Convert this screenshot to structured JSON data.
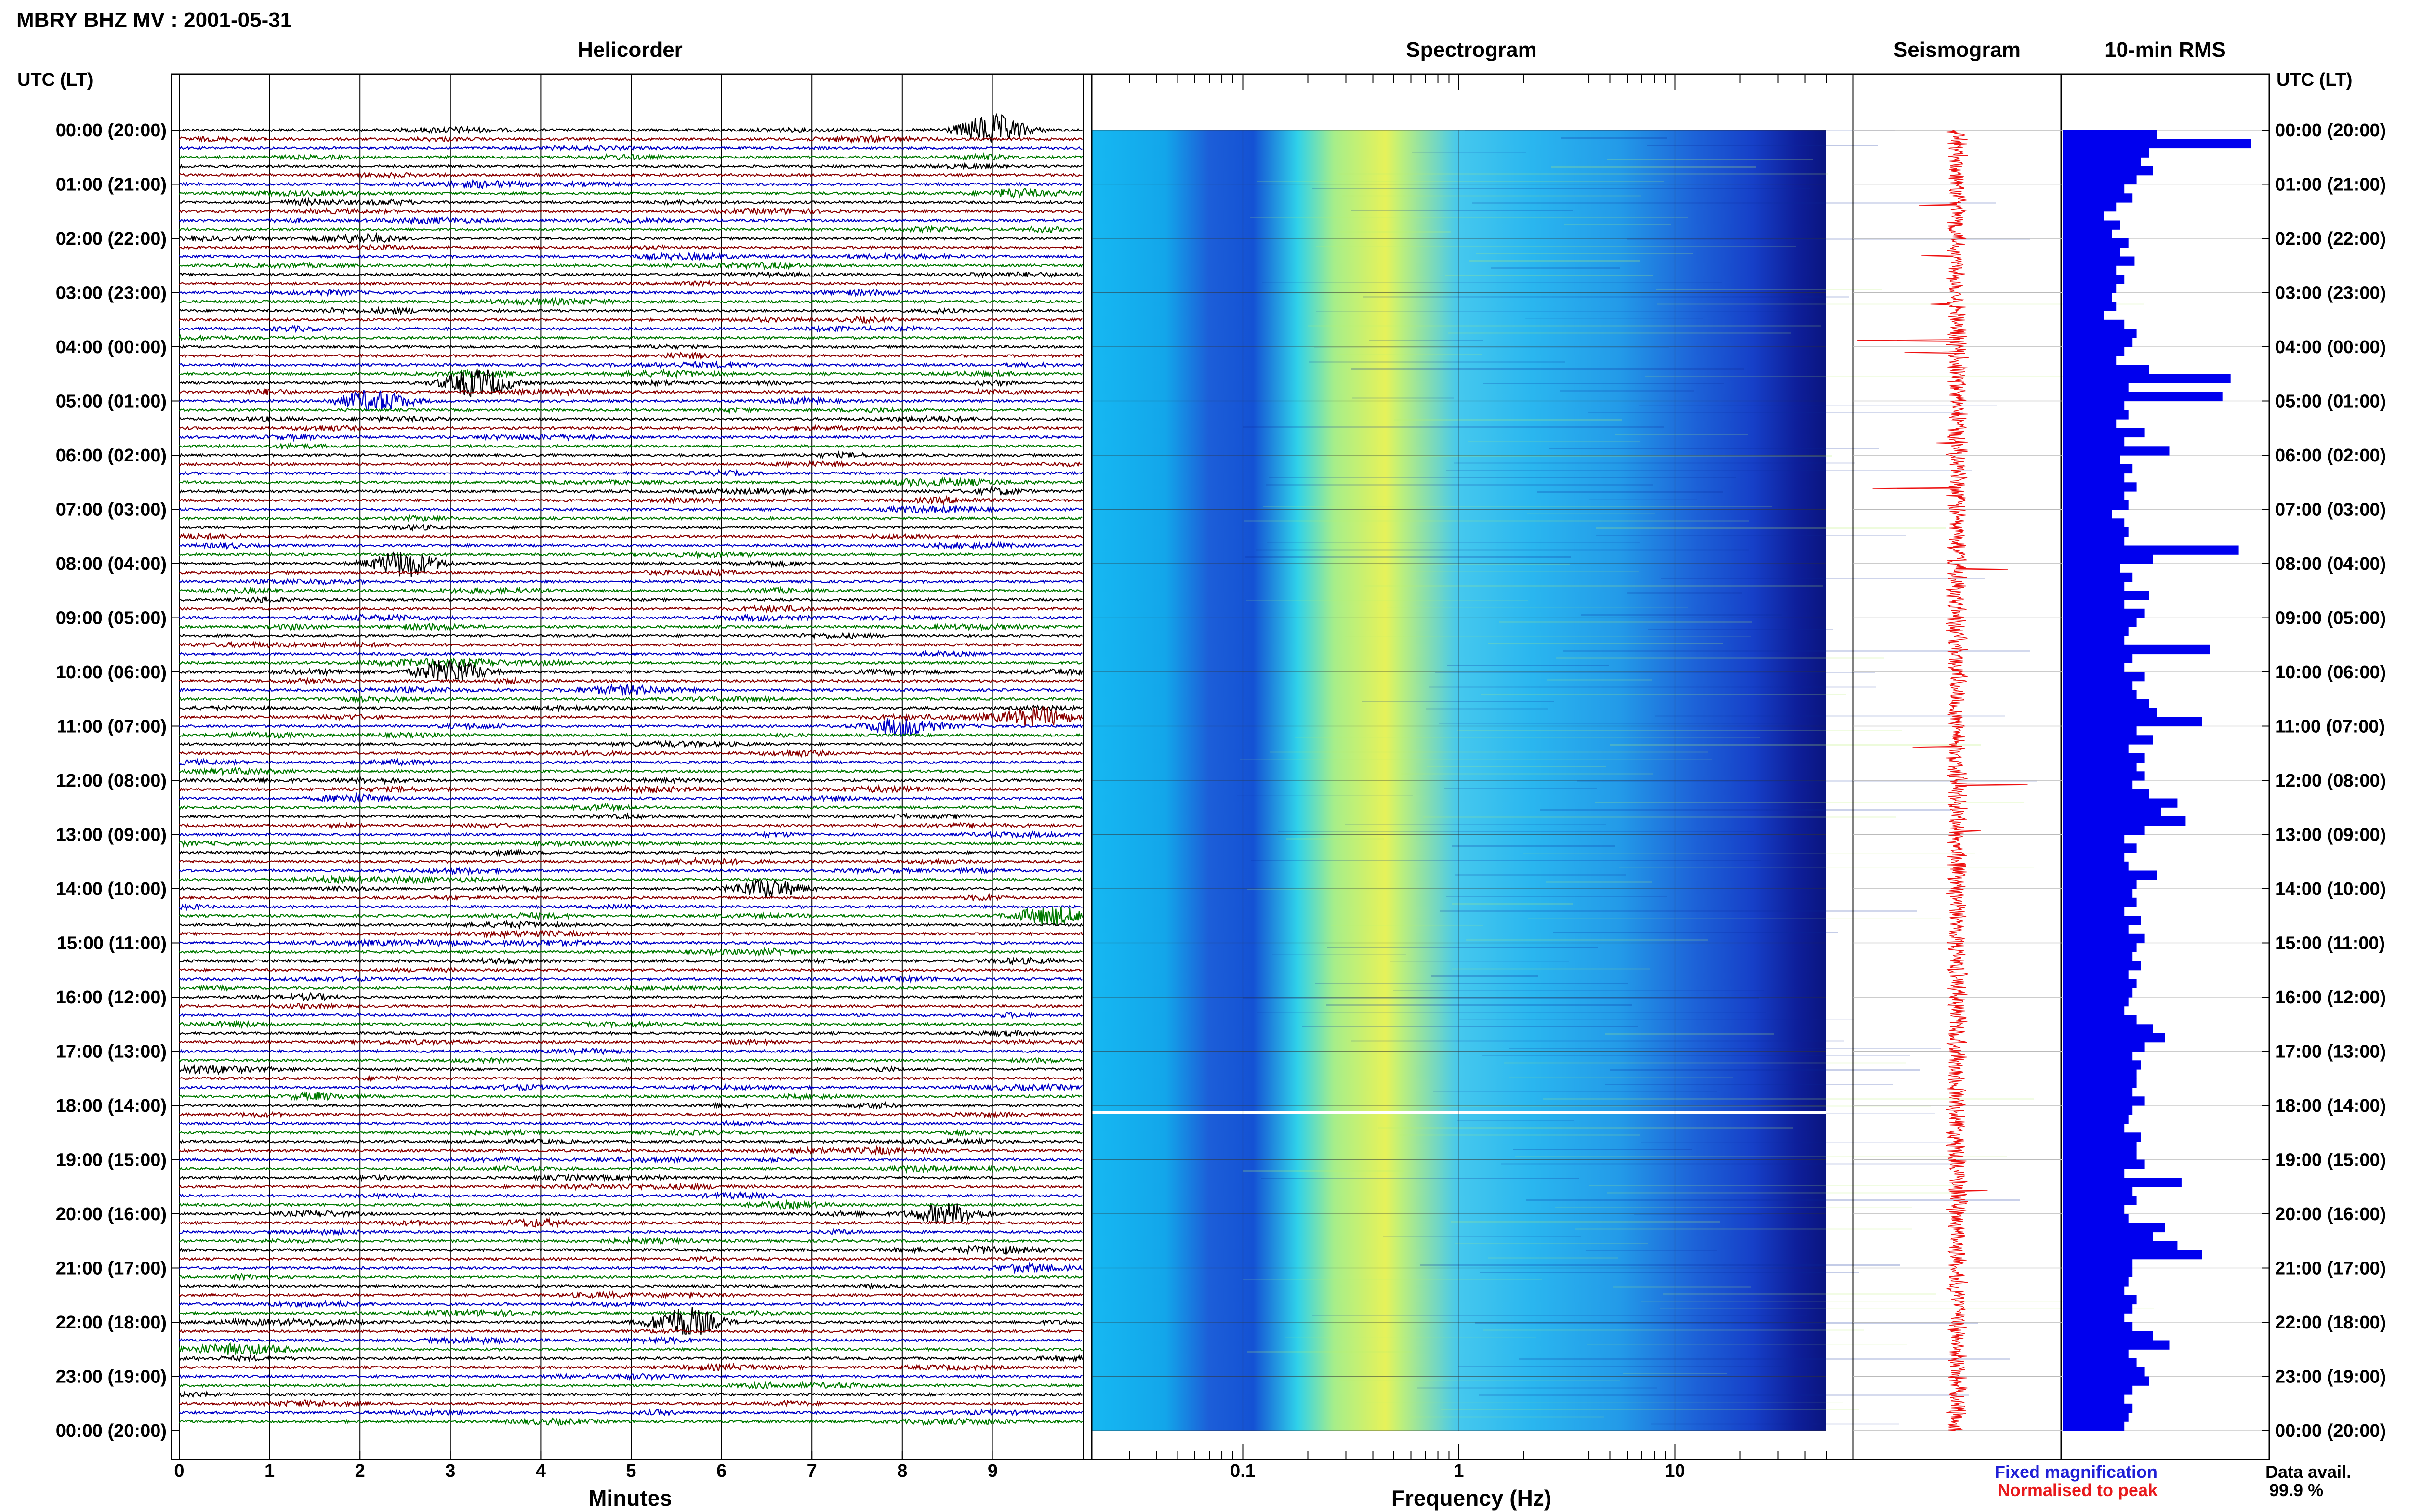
{
  "header": {
    "station_title": "MBRY BHZ MV : 2001-05-31"
  },
  "axis_header_left": "UTC (LT)",
  "axis_header_right": "UTC (LT)",
  "panels": {
    "helicorder": "Helicorder",
    "spectrogram": "Spectrogram",
    "seismogram": "Seismogram",
    "rms": "10-min RMS"
  },
  "time_labels": [
    "00:00 (20:00)",
    "01:00 (21:00)",
    "02:00 (22:00)",
    "03:00 (23:00)",
    "04:00 (00:00)",
    "05:00 (01:00)",
    "06:00 (02:00)",
    "07:00 (03:00)",
    "08:00 (04:00)",
    "09:00 (05:00)",
    "10:00 (06:00)",
    "11:00 (07:00)",
    "12:00 (08:00)",
    "13:00 (09:00)",
    "14:00 (10:00)",
    "15:00 (11:00)",
    "16:00 (12:00)",
    "17:00 (13:00)",
    "18:00 (14:00)",
    "19:00 (15:00)",
    "20:00 (16:00)",
    "21:00 (17:00)",
    "22:00 (18:00)",
    "23:00 (19:00)",
    "00:00 (20:00)"
  ],
  "helicorder_axis": {
    "xlabel": "Minutes",
    "ticks": [
      "0",
      "1",
      "2",
      "3",
      "4",
      "5",
      "6",
      "7",
      "8",
      "9"
    ],
    "xlim": [
      0,
      10
    ]
  },
  "spectrogram_axis": {
    "xlabel": "Frequency (Hz)",
    "scale": "log",
    "ticks": [
      "0.1",
      "1",
      "10"
    ],
    "tick_values": [
      0.1,
      1,
      10
    ],
    "xlim": [
      0.02,
      50
    ],
    "colormap": "blue-cyan-yellow",
    "data_gap_hour": 18
  },
  "legend": {
    "fixed": "Fixed magnification",
    "normalised": "Normalised to peak",
    "fixed_color": "#1f1fd6",
    "normalised_color": "#e8191b"
  },
  "data_availability": {
    "label": "Data avail.",
    "value": "99.9 %"
  },
  "colors": {
    "trace_cycle": [
      "#000000",
      "#8b0000",
      "#0000c8",
      "#007a00"
    ],
    "rms_bar": "#0000ee",
    "seismogram": "#ee1111"
  },
  "chart_data": [
    {
      "type": "line",
      "name_panel": "Helicorder",
      "xlabel": "Minutes",
      "xlim": [
        0,
        10
      ],
      "rows_per_hour": 6,
      "total_rows": 144,
      "events": [
        {
          "row": 0,
          "minute": 9.0,
          "amp": 3.2
        },
        {
          "row": 28,
          "minute": 3.3,
          "amp": 3.0
        },
        {
          "row": 30,
          "minute": 2.2,
          "amp": 2.0
        },
        {
          "row": 48,
          "minute": 2.5,
          "amp": 2.8
        },
        {
          "row": 60,
          "minute": 3.0,
          "amp": 2.6
        },
        {
          "row": 65,
          "minute": 9.5,
          "amp": 2.0
        },
        {
          "row": 66,
          "minute": 8.0,
          "amp": 1.8
        },
        {
          "row": 84,
          "minute": 6.5,
          "amp": 2.0
        },
        {
          "row": 87,
          "minute": 9.6,
          "amp": 1.8
        },
        {
          "row": 120,
          "minute": 8.5,
          "amp": 2.2
        },
        {
          "row": 132,
          "minute": 5.6,
          "amp": 3.2
        }
      ]
    },
    {
      "type": "bar",
      "name_panel": "10-min RMS",
      "orientation": "horizontal",
      "xlim": [
        0,
        1.0
      ],
      "values": [
        0.46,
        0.92,
        0.42,
        0.38,
        0.44,
        0.36,
        0.3,
        0.34,
        0.26,
        0.2,
        0.28,
        0.24,
        0.32,
        0.28,
        0.35,
        0.26,
        0.3,
        0.26,
        0.24,
        0.26,
        0.2,
        0.3,
        0.36,
        0.34,
        0.3,
        0.26,
        0.42,
        0.82,
        0.32,
        0.78,
        0.3,
        0.32,
        0.26,
        0.4,
        0.3,
        0.52,
        0.28,
        0.34,
        0.3,
        0.36,
        0.3,
        0.32,
        0.24,
        0.3,
        0.32,
        0.3,
        0.86,
        0.44,
        0.28,
        0.34,
        0.3,
        0.42,
        0.3,
        0.4,
        0.36,
        0.32,
        0.3,
        0.72,
        0.34,
        0.3,
        0.4,
        0.34,
        0.36,
        0.42,
        0.46,
        0.68,
        0.36,
        0.44,
        0.32,
        0.4,
        0.36,
        0.4,
        0.34,
        0.42,
        0.56,
        0.48,
        0.6,
        0.4,
        0.3,
        0.36,
        0.3,
        0.32,
        0.46,
        0.36,
        0.34,
        0.36,
        0.3,
        0.38,
        0.32,
        0.4,
        0.36,
        0.34,
        0.38,
        0.32,
        0.36,
        0.34,
        0.32,
        0.3,
        0.36,
        0.44,
        0.5,
        0.4,
        0.34,
        0.38,
        0.36,
        0.36,
        0.34,
        0.4,
        0.34,
        0.32,
        0.3,
        0.38,
        0.36,
        0.36,
        0.4,
        0.3,
        0.58,
        0.34,
        0.36,
        0.3,
        0.32,
        0.5,
        0.44,
        0.56,
        0.68,
        0.34,
        0.34,
        0.32,
        0.3,
        0.36,
        0.34,
        0.3,
        0.34,
        0.44,
        0.52,
        0.32,
        0.36,
        0.4,
        0.42,
        0.34,
        0.3,
        0.34,
        0.32,
        0.3
      ]
    }
  ]
}
